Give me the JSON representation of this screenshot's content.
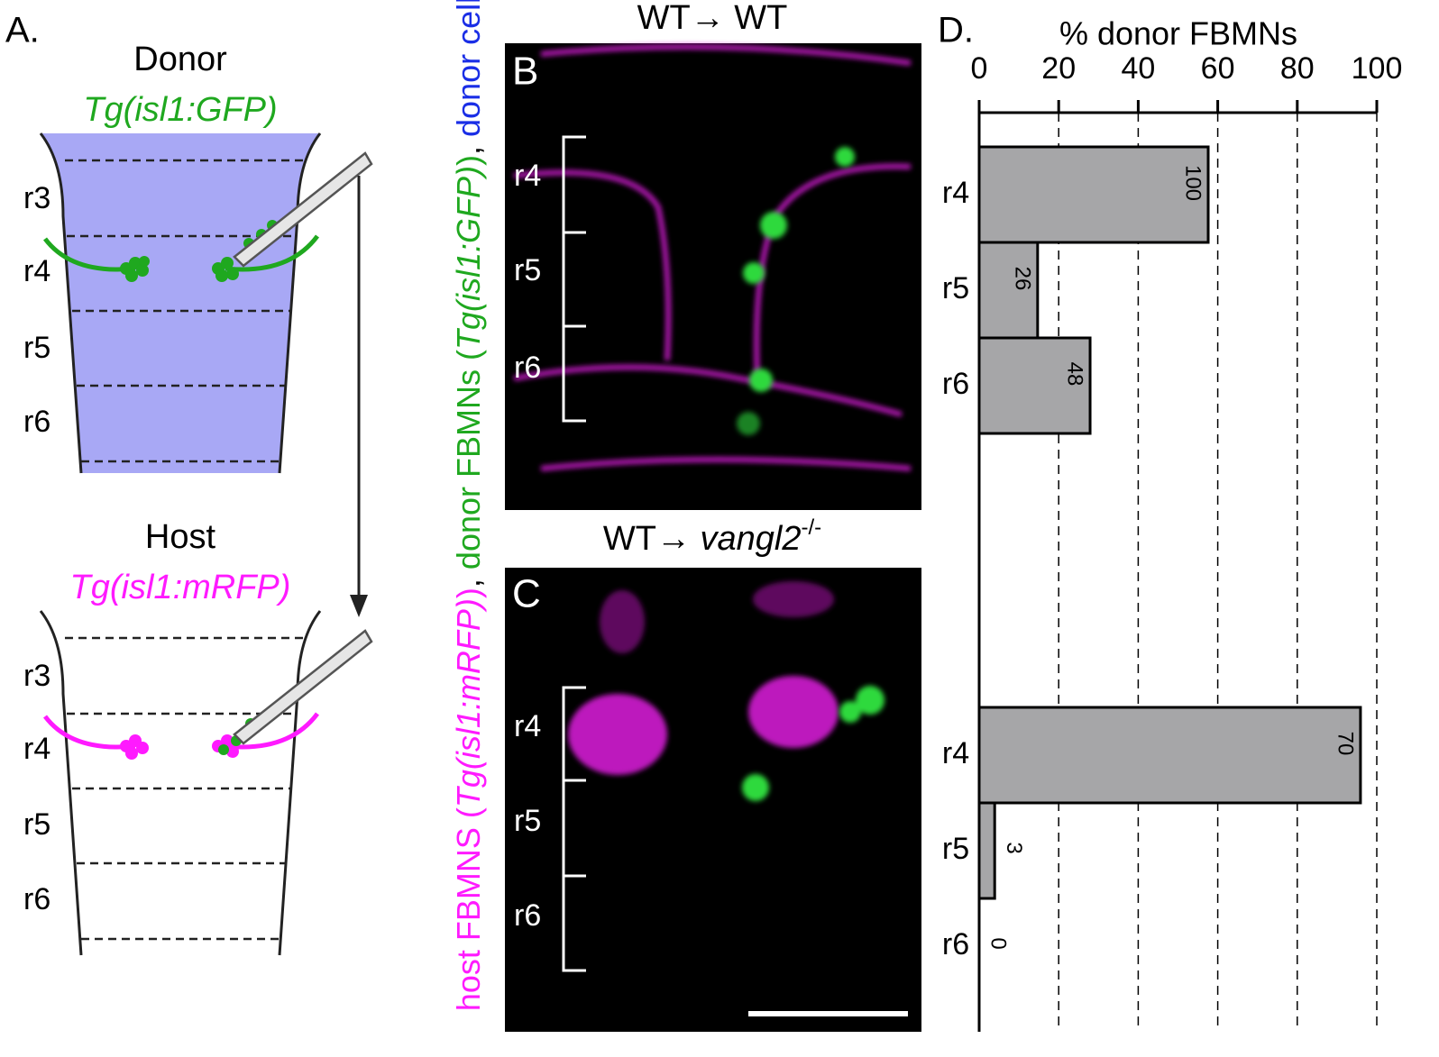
{
  "panel_a": {
    "label": "A.",
    "donor": {
      "title": "Donor",
      "genotype": "Tg(isl1:GFP)",
      "rhombomeres": [
        "r3",
        "r4",
        "r5",
        "r6"
      ]
    },
    "host": {
      "title": "Host",
      "genotype": "Tg(isl1:mRFP)",
      "rhombomeres": [
        "r3",
        "r4",
        "r5",
        "r6"
      ]
    }
  },
  "panel_b": {
    "label": "B",
    "title": [
      {
        "text": "WT→ WT"
      }
    ],
    "rhombomeres": [
      "r4",
      "r5",
      "r6"
    ]
  },
  "panel_c": {
    "label": "C",
    "title": [
      {
        "text": "WT→ "
      },
      {
        "text": "vangl2",
        "italic": true
      },
      {
        "text": "-/-",
        "superscript": true
      }
    ],
    "rhombomeres": [
      "r4",
      "r5",
      "r6"
    ]
  },
  "legend": [
    {
      "text": "host FBMNS (",
      "color": "#ff1aff"
    },
    {
      "text": "Tg(isl1:mRFP)",
      "color": "#ff1aff",
      "italic": true
    },
    {
      "text": ")",
      "color": "#ff1aff"
    },
    {
      "text": ", ",
      "color": "#000000"
    },
    {
      "text": "donor FBMNs (",
      "color": "#1fa81f"
    },
    {
      "text": "Tg(isl1:GFP)",
      "color": "#1fa81f",
      "italic": true
    },
    {
      "text": ")",
      "color": "#1fa81f"
    },
    {
      "text": ", ",
      "color": "#000000"
    },
    {
      "text": "donor cells",
      "color": "#1a2ee6"
    }
  ],
  "chart_data": {
    "type": "bar",
    "label": "D.",
    "x_label": "% donor FBMNs",
    "xlim": [
      0,
      100
    ],
    "xticks": [
      0,
      20,
      40,
      60,
      80,
      100
    ],
    "grid": true,
    "color": "#a6a6a8",
    "groups": [
      {
        "categories": [
          "r4",
          "r5",
          "r6"
        ],
        "values": [
          57.6,
          14.7,
          27.9
        ],
        "n": [
          "100",
          "26",
          "48"
        ]
      },
      {
        "categories": [
          "r4",
          "r5",
          "r6"
        ],
        "values": [
          95.9,
          3.9,
          0
        ],
        "n": [
          "70",
          "3",
          "0"
        ]
      }
    ]
  }
}
